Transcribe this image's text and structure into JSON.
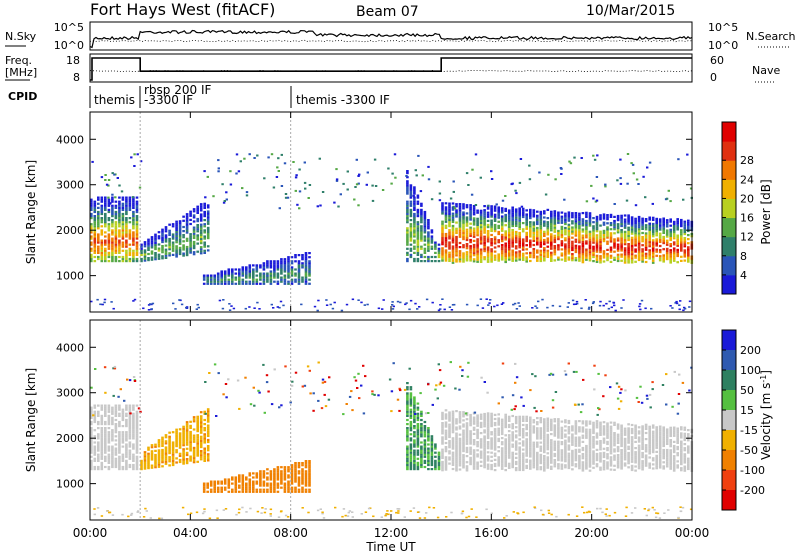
{
  "header": {
    "title": "Fort Hays West (fitACF)",
    "beam": "Beam 07",
    "date": "10/Mar/2015"
  },
  "noise_panel": {
    "left_label": "N.Sky",
    "right_label": "N.Search",
    "left_ticks": [
      "10^5",
      "10^0"
    ],
    "right_ticks": [
      "10^5",
      "10^0"
    ]
  },
  "freq_panel": {
    "left_label_1": "Freq.",
    "left_label_2": "[MHz]",
    "right_label": "Nave",
    "left_ticks": [
      "18",
      "8"
    ],
    "right_ticks": [
      "60",
      "0"
    ],
    "freq_high_mhz": 18,
    "freq_low_mhz": 8,
    "freq_steps": [
      {
        "from_ut": 0.0,
        "to_ut": 0.08,
        "value": 8
      },
      {
        "from_ut": 0.08,
        "to_ut": 2.0,
        "value": 18
      },
      {
        "from_ut": 2.0,
        "to_ut": 14.0,
        "value": 12
      },
      {
        "from_ut": 14.0,
        "to_ut": 24.0,
        "value": 18
      }
    ]
  },
  "cpid": {
    "label": "CPID",
    "segments": [
      {
        "start_ut": 0.0,
        "text": "themis"
      },
      {
        "start_ut": 2.0,
        "text": "rbsp 200 IF"
      },
      {
        "start_ut": 2.0,
        "text": "-3300 IF"
      },
      {
        "start_ut": 8.0,
        "text": "themis -3300 IF"
      }
    ]
  },
  "chart_data": [
    {
      "type": "heatmap",
      "panel": "power",
      "ylabel": "Slant Range [km]",
      "ylim": [
        200,
        4600
      ],
      "yticks": [
        "1000",
        "2000",
        "3000",
        "4000"
      ],
      "xlim": [
        0,
        24
      ],
      "colorbar": {
        "label": "Power [dB]",
        "ticks": [
          "4",
          "8",
          "12",
          "16",
          "20",
          "24",
          "28"
        ],
        "range": [
          0,
          30
        ],
        "colors": [
          "#1a1ad8",
          "#2a55b8",
          "#2f7f6a",
          "#55a845",
          "#b8d020",
          "#f0b000",
          "#f07800",
          "#e03010",
          "#e00000"
        ]
      },
      "echo_regions": [
        {
          "from_ut": 0.0,
          "to_ut": 1.9,
          "range_km": [
            1300,
            2700
          ],
          "peak_dB": 24
        },
        {
          "from_ut": 2.0,
          "to_ut": 4.8,
          "range_km": [
            1300,
            2700
          ],
          "peak_dB": 12
        },
        {
          "from_ut": 4.5,
          "to_ut": 8.7,
          "range_km": [
            800,
            1500
          ],
          "peak_dB": 10
        },
        {
          "from_ut": 12.6,
          "to_ut": 14.0,
          "range_km": [
            1300,
            3300
          ],
          "peak_dB": 14
        },
        {
          "from_ut": 14.0,
          "to_ut": 24.0,
          "range_km": [
            1200,
            2600
          ],
          "peak_dB": 28
        }
      ]
    },
    {
      "type": "heatmap",
      "panel": "velocity",
      "ylabel": "Slant Range [km]",
      "xlabel": "Time UT",
      "ylim": [
        200,
        4600
      ],
      "yticks": [
        "1000",
        "2000",
        "3000",
        "4000"
      ],
      "xlim": [
        0,
        24
      ],
      "xticks": [
        "00:00",
        "04:00",
        "08:00",
        "12:00",
        "16:00",
        "20:00",
        "00:00"
      ],
      "colorbar": {
        "label": "Velocity [m s",
        "label_sup": "-1",
        "label_end": "]",
        "ticks": [
          "200",
          "100",
          "50",
          "15",
          "-15",
          "-50",
          "-100",
          "-200"
        ],
        "colors": [
          "#1a1ad8",
          "#2f5ab0",
          "#2e8060",
          "#55c040",
          "#c8c8c8",
          "#f0b000",
          "#f08000",
          "#f04010",
          "#e00000"
        ]
      },
      "echo_regions": [
        {
          "from_ut": 0.0,
          "to_ut": 1.9,
          "range_km": [
            1300,
            2700
          ],
          "velocity": 0
        },
        {
          "from_ut": 2.0,
          "to_ut": 4.8,
          "range_km": [
            1300,
            2700
          ],
          "velocity": -40
        },
        {
          "from_ut": 4.5,
          "to_ut": 8.7,
          "range_km": [
            800,
            1500
          ],
          "velocity": -80
        },
        {
          "from_ut": 12.6,
          "to_ut": 14.0,
          "range_km": [
            1300,
            3300
          ],
          "velocity": 30
        },
        {
          "from_ut": 14.0,
          "to_ut": 24.0,
          "range_km": [
            1200,
            2600
          ],
          "velocity": 0
        }
      ]
    }
  ]
}
